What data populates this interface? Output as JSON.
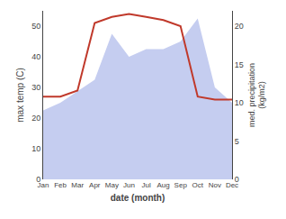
{
  "chart_data": {
    "type": "line",
    "xlabel": "date (month)",
    "ylabel": "max temp (C)",
    "y2label": "med. precipitation\n(kg/m2)",
    "categories": [
      "Jan",
      "Feb",
      "Mar",
      "Apr",
      "May",
      "Jun",
      "Jul",
      "Aug",
      "Sep",
      "Oct",
      "Nov",
      "Dec"
    ],
    "series": [
      {
        "type": "area",
        "axis": "y2",
        "color": "#c5cdf0",
        "values": [
          9,
          10,
          11.5,
          13,
          19,
          16,
          17,
          17,
          18,
          21,
          12,
          10
        ]
      },
      {
        "type": "line",
        "color": "#c0392b",
        "values": [
          27,
          27,
          29,
          51,
          53,
          54,
          53,
          52,
          50,
          27,
          26,
          26
        ]
      }
    ],
    "ylim": [
      0,
      55
    ],
    "yticks": [
      0,
      10,
      20,
      30,
      40,
      50
    ],
    "y2lim": [
      0,
      22
    ],
    "y2ticks": [
      0,
      5,
      10,
      15,
      20
    ],
    "grid": false
  }
}
